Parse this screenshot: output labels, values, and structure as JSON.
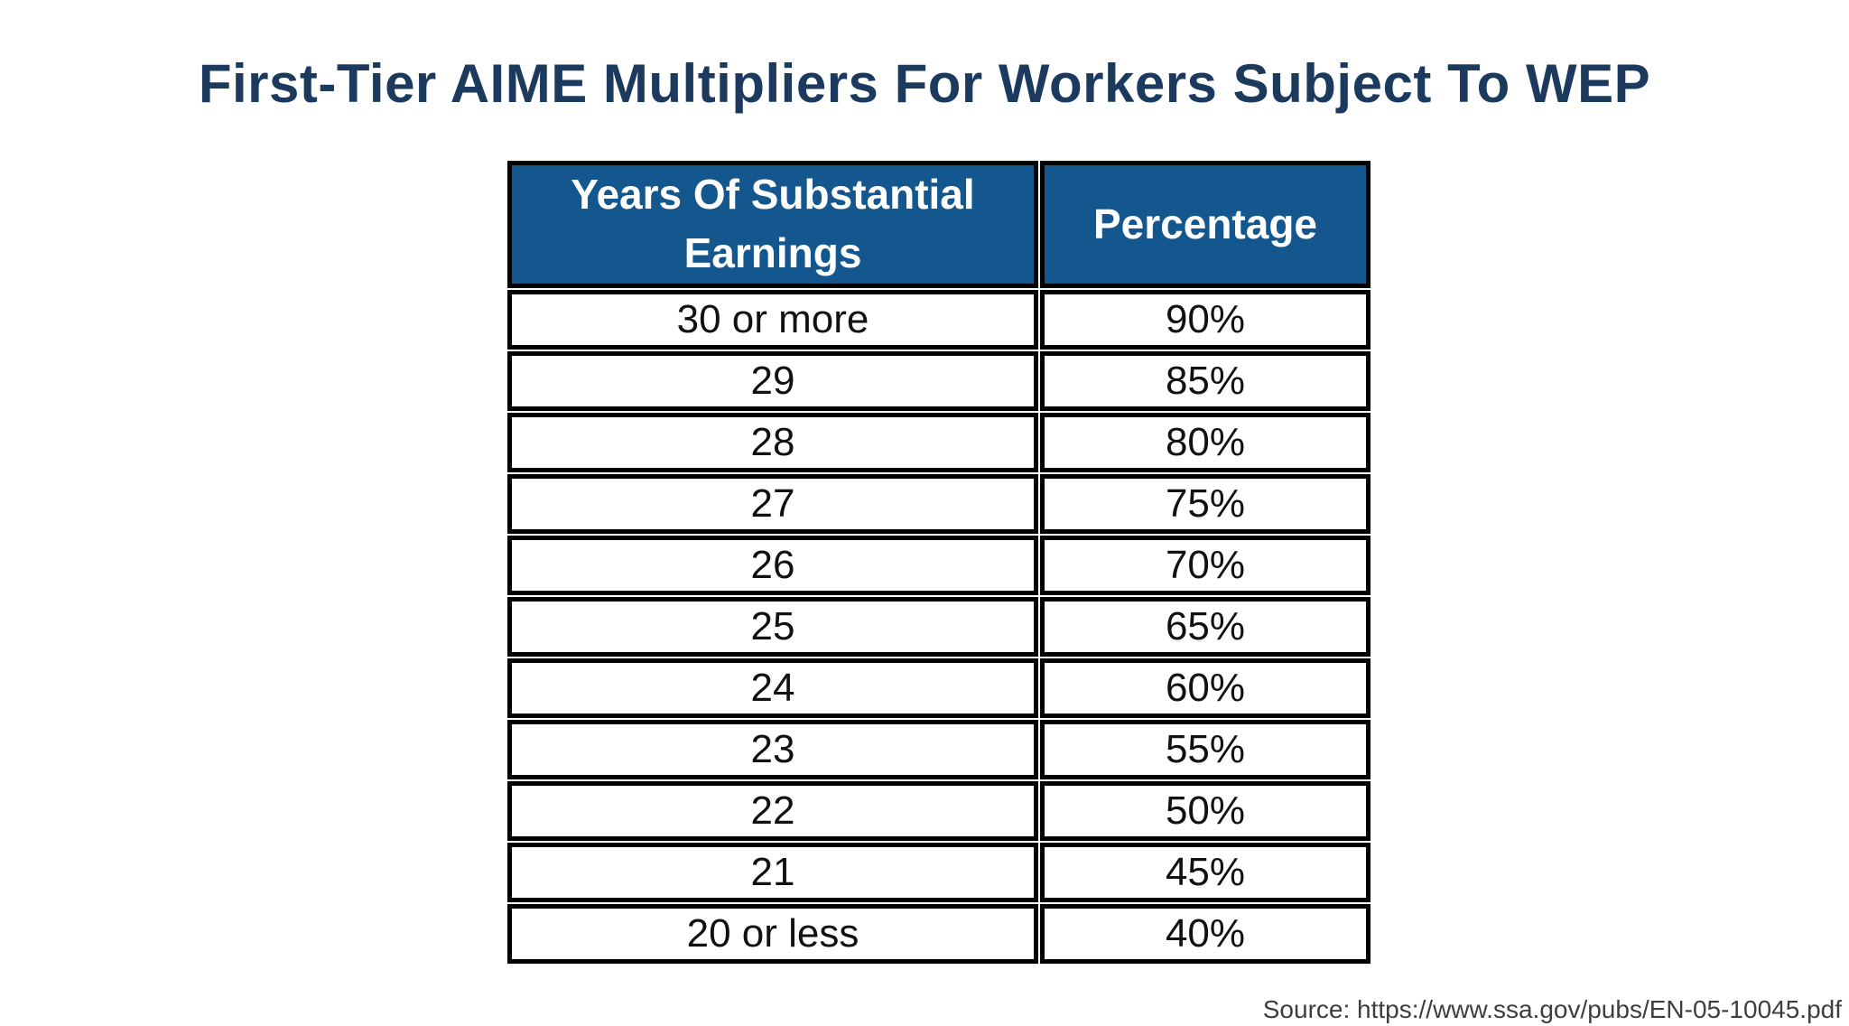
{
  "title": "First-Tier AIME Multipliers For Workers Subject To WEP",
  "source": "Source: https://www.ssa.gov/pubs/EN-05-10045.pdf",
  "colors": {
    "title_text": "#1b3a5e",
    "header_bg": "#14578f",
    "header_text": "#ffffff",
    "body_text": "#111111",
    "grid_border": "#000000",
    "source_text": "#3e3e3e",
    "background": "#ffffff"
  },
  "chart_data": {
    "type": "table",
    "title": "First-Tier AIME Multipliers For Workers Subject To WEP",
    "columns": [
      "Years Of Substantial Earnings",
      "Percentage"
    ],
    "rows": [
      [
        "30 or more",
        "90%"
      ],
      [
        "29",
        "85%"
      ],
      [
        "28",
        "80%"
      ],
      [
        "27",
        "75%"
      ],
      [
        "26",
        "70%"
      ],
      [
        "25",
        "65%"
      ],
      [
        "24",
        "60%"
      ],
      [
        "23",
        "55%"
      ],
      [
        "22",
        "50%"
      ],
      [
        "21",
        "45%"
      ],
      [
        "20 or less",
        "40%"
      ]
    ],
    "layout": {
      "header_style": "blue background, white bold text",
      "grid": "thick black borders with thin white gap between cells",
      "legend_position": "none"
    }
  }
}
